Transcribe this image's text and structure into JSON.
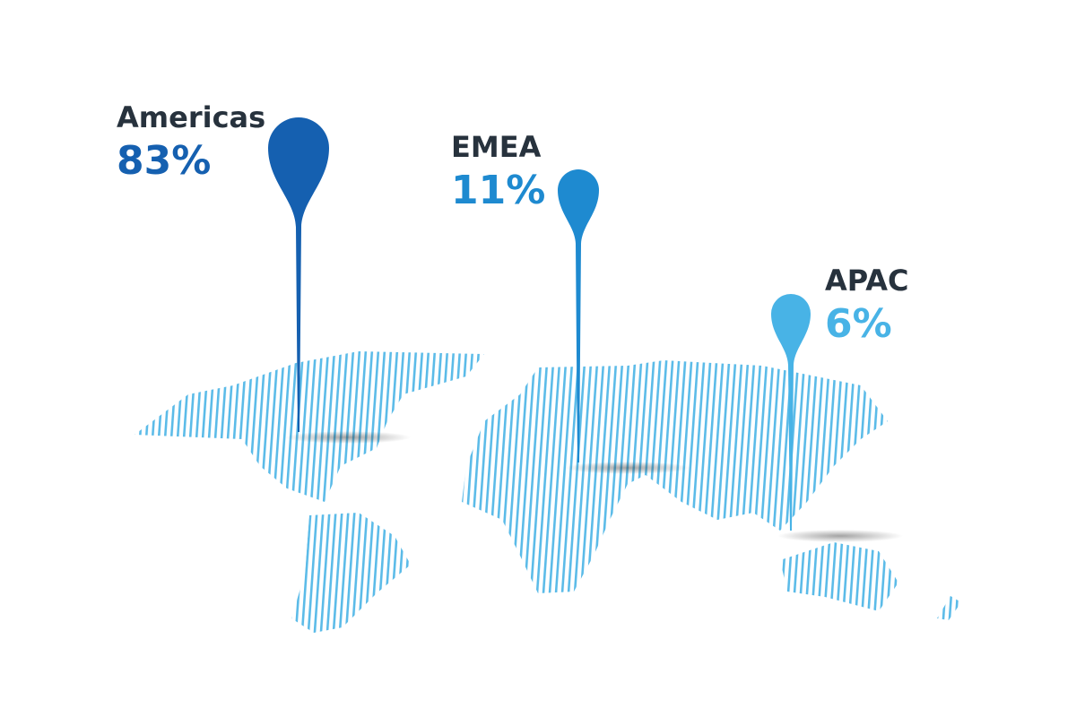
{
  "chart_data": {
    "type": "map",
    "categories": [
      "Americas",
      "EMEA",
      "APAC"
    ],
    "values": [
      83,
      11,
      6
    ],
    "value_labels": [
      "83%",
      "11%",
      "6%"
    ],
    "colors": [
      "#1560b0",
      "#1e8ad0",
      "#48b3e6"
    ]
  }
}
